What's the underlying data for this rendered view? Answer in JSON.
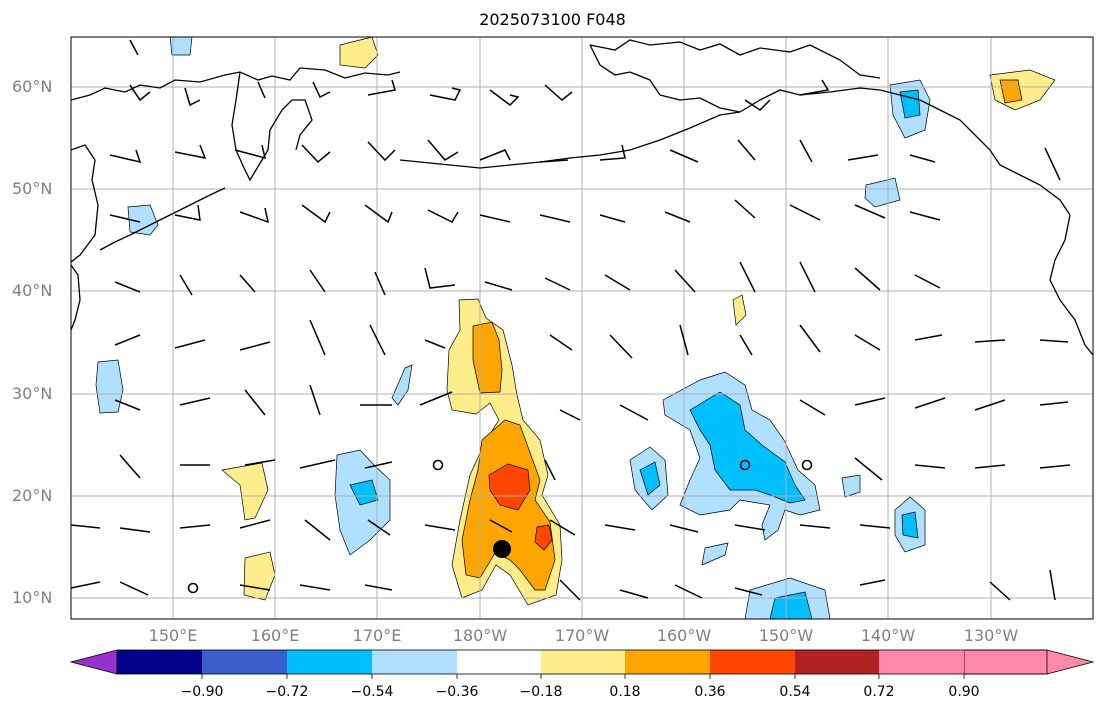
{
  "title": "2025073100 F048",
  "lat_labels": [
    "60°N",
    "50°N",
    "40°N",
    "30°N",
    "20°N",
    "10°N"
  ],
  "lon_labels": [
    "150°E",
    "160°E",
    "170°E",
    "180°W",
    "170°W",
    "160°W",
    "150°W",
    "140°W",
    "130°W"
  ],
  "colorbar": {
    "tick_labels": [
      "−0.90",
      "−0.72",
      "−0.54",
      "−0.36",
      "−0.18",
      "0.18",
      "0.36",
      "0.54",
      "0.72",
      "0.90"
    ],
    "colors": [
      "#9932cc",
      "#00008b",
      "#3a5fcd",
      "#00bfff",
      "#b0e0ff",
      "#ffffff",
      "#ffec8b",
      "#ffa500",
      "#ff4500",
      "#b22222",
      "#ff88aa"
    ]
  },
  "map": {
    "lat_range": [
      8,
      65
    ],
    "lon_range": [
      140,
      242
    ],
    "grid": true,
    "storm_center": {
      "lon": 182,
      "lat": 15
    }
  }
}
